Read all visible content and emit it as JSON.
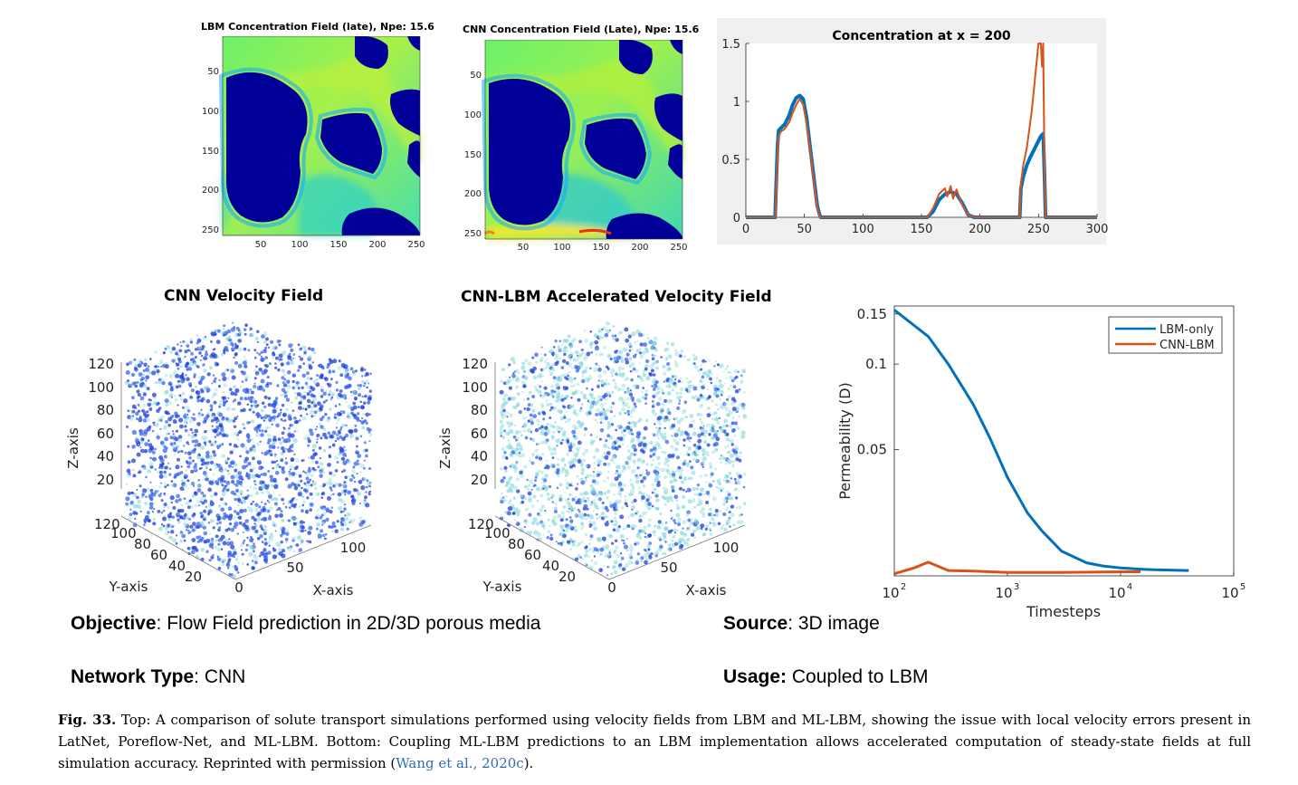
{
  "top_panels": {
    "lbm_map": {
      "title": "LBM Concentration Field (late), Npe: 15.6",
      "y_ticks": [
        "50",
        "100",
        "150",
        "200",
        "250"
      ],
      "x_ticks": [
        "50",
        "100",
        "150",
        "200",
        "250"
      ]
    },
    "cnn_map": {
      "title": "CNN Concentration Field (Late), Npe: 15.6",
      "y_ticks": [
        "50",
        "100",
        "150",
        "200",
        "250"
      ],
      "x_ticks": [
        "50",
        "100",
        "150",
        "200",
        "250"
      ]
    }
  },
  "bottom_panels": {
    "cnn_velocity": {
      "title": "CNN Velocity Field",
      "z_label": "Z-axis",
      "y_label": "Y-axis",
      "x_label": "X-axis",
      "z_ticks": [
        "120",
        "100",
        "80",
        "60",
        "40",
        "20"
      ],
      "y_ticks": [
        "120",
        "100",
        "80",
        "60",
        "40",
        "20"
      ],
      "x_ticks": [
        "0",
        "50",
        "100"
      ]
    },
    "cnn_lbm_velocity": {
      "title": "CNN-LBM Accelerated Velocity Field",
      "z_label": "Z-axis",
      "y_label": "Y-axis",
      "x_label": "X-axis",
      "z_ticks": [
        "120",
        "100",
        "80",
        "60",
        "40",
        "20"
      ],
      "y_ticks": [
        "120",
        "100",
        "80",
        "60",
        "40",
        "20"
      ],
      "x_ticks": [
        "0",
        "50",
        "100"
      ]
    }
  },
  "chart_data": [
    {
      "type": "line",
      "title": "Concentration at x = 200",
      "xlabel": "",
      "ylabel": "",
      "xlim": [
        0,
        300
      ],
      "ylim": [
        0,
        1.5
      ],
      "x_ticks": [
        0,
        50,
        100,
        150,
        200,
        250,
        300
      ],
      "y_ticks": [
        0,
        0.5,
        1,
        1.5
      ],
      "y_tick_labels": [
        "0",
        "0.5",
        "1",
        "1.5"
      ],
      "grid": false,
      "series": [
        {
          "color": "#0072bd",
          "x": [
            0,
            25,
            26,
            27,
            28,
            30,
            33,
            37,
            40,
            43,
            46,
            49,
            52,
            55,
            58,
            61,
            63,
            64,
            65,
            155,
            160,
            165,
            170,
            175,
            180,
            185,
            190,
            195,
            200,
            210,
            220,
            234,
            235,
            237,
            240,
            243,
            246,
            249,
            252,
            254,
            255,
            256,
            257,
            300
          ],
          "y": [
            0,
            0,
            0.3,
            0.6,
            0.75,
            0.77,
            0.8,
            0.88,
            0.97,
            1.03,
            1.05,
            1.02,
            0.85,
            0.6,
            0.35,
            0.1,
            0.02,
            0,
            0,
            0,
            0.05,
            0.15,
            0.2,
            0.22,
            0.2,
            0.12,
            0.02,
            0,
            0,
            0,
            0,
            0,
            0.25,
            0.35,
            0.45,
            0.52,
            0.58,
            0.64,
            0.7,
            0.72,
            0.4,
            0,
            0,
            0
          ]
        },
        {
          "color": "#d95319",
          "x": [
            0,
            25,
            26,
            27,
            28,
            30,
            33,
            37,
            40,
            43,
            46,
            49,
            52,
            55,
            58,
            61,
            63,
            64,
            65,
            155,
            160,
            165,
            170,
            172,
            175,
            177,
            180,
            185,
            190,
            195,
            200,
            210,
            220,
            234,
            235,
            237,
            240,
            242,
            244,
            246,
            248,
            250,
            252,
            253,
            254,
            255,
            256,
            257,
            300
          ],
          "y": [
            0,
            0,
            0.2,
            0.5,
            0.7,
            0.74,
            0.76,
            0.82,
            0.9,
            0.97,
            1.02,
            0.97,
            0.8,
            0.58,
            0.32,
            0.08,
            0.01,
            0,
            0,
            0,
            0.08,
            0.2,
            0.25,
            0.18,
            0.27,
            0.16,
            0.24,
            0.1,
            0.02,
            0,
            0,
            0,
            0,
            0,
            0.3,
            0.45,
            0.6,
            0.75,
            0.9,
            1.1,
            1.3,
            1.5,
            1.5,
            1.3,
            1.5,
            0.5,
            0,
            0,
            0
          ]
        }
      ]
    },
    {
      "type": "line",
      "title": "",
      "xlabel": "Timesteps",
      "ylabel": "Permeability (D)",
      "x_scale": "log",
      "y_scale": "log",
      "xlim": [
        100,
        100000
      ],
      "ylim": [
        0.018,
        0.16
      ],
      "x_tick_bases": [
        "10",
        "10",
        "10",
        "10"
      ],
      "x_tick_exps": [
        "2",
        "3",
        "4",
        "5"
      ],
      "x_tick_values": [
        100,
        1000,
        10000,
        100000
      ],
      "y_ticks": [
        0.05,
        0.1,
        0.15
      ],
      "y_tick_labels": [
        "0.05",
        "0.1",
        "0.15"
      ],
      "legend": "top-right",
      "grid": false,
      "series": [
        {
          "name": "LBM-only",
          "color": "#0072bd",
          "x": [
            100,
            200,
            300,
            500,
            700,
            1000,
            1500,
            2000,
            3000,
            5000,
            7000,
            10000,
            15000,
            20000,
            40000
          ],
          "y": [
            0.155,
            0.125,
            0.1,
            0.072,
            0.055,
            0.04,
            0.03,
            0.026,
            0.022,
            0.02,
            0.0195,
            0.0192,
            0.019,
            0.0189,
            0.0188
          ]
        },
        {
          "name": "CNN-LBM",
          "color": "#d95319",
          "x": [
            100,
            150,
            200,
            300,
            500,
            1000,
            3000,
            10000,
            15000
          ],
          "y": [
            0.0183,
            0.0192,
            0.0201,
            0.0188,
            0.0187,
            0.0185,
            0.0185,
            0.0186,
            0.0186
          ]
        }
      ]
    }
  ],
  "info": {
    "objective_label": "Objective",
    "objective_value": ": Flow Field prediction in 2D/3D porous media",
    "source_label": "Source",
    "source_value": ": 3D image",
    "network_label": "Network Type",
    "network_value": ": CNN",
    "usage_label": "Usage:",
    "usage_value": " Coupled to LBM"
  },
  "caption": {
    "fig_label": "Fig. 33.",
    "text": " Top: A comparison of solute transport simulations performed using velocity fields from LBM and ML-LBM, showing the issue with local velocity errors present in LatNet, Poreflow-Net, and ML-LBM. Bottom: Coupling ML-LBM predictions to an LBM implementation allows accelerated computation of steady-state fields at full simulation accuracy. Reprinted with permission (",
    "citation": "Wang et al., 2020c",
    "end": ")."
  }
}
